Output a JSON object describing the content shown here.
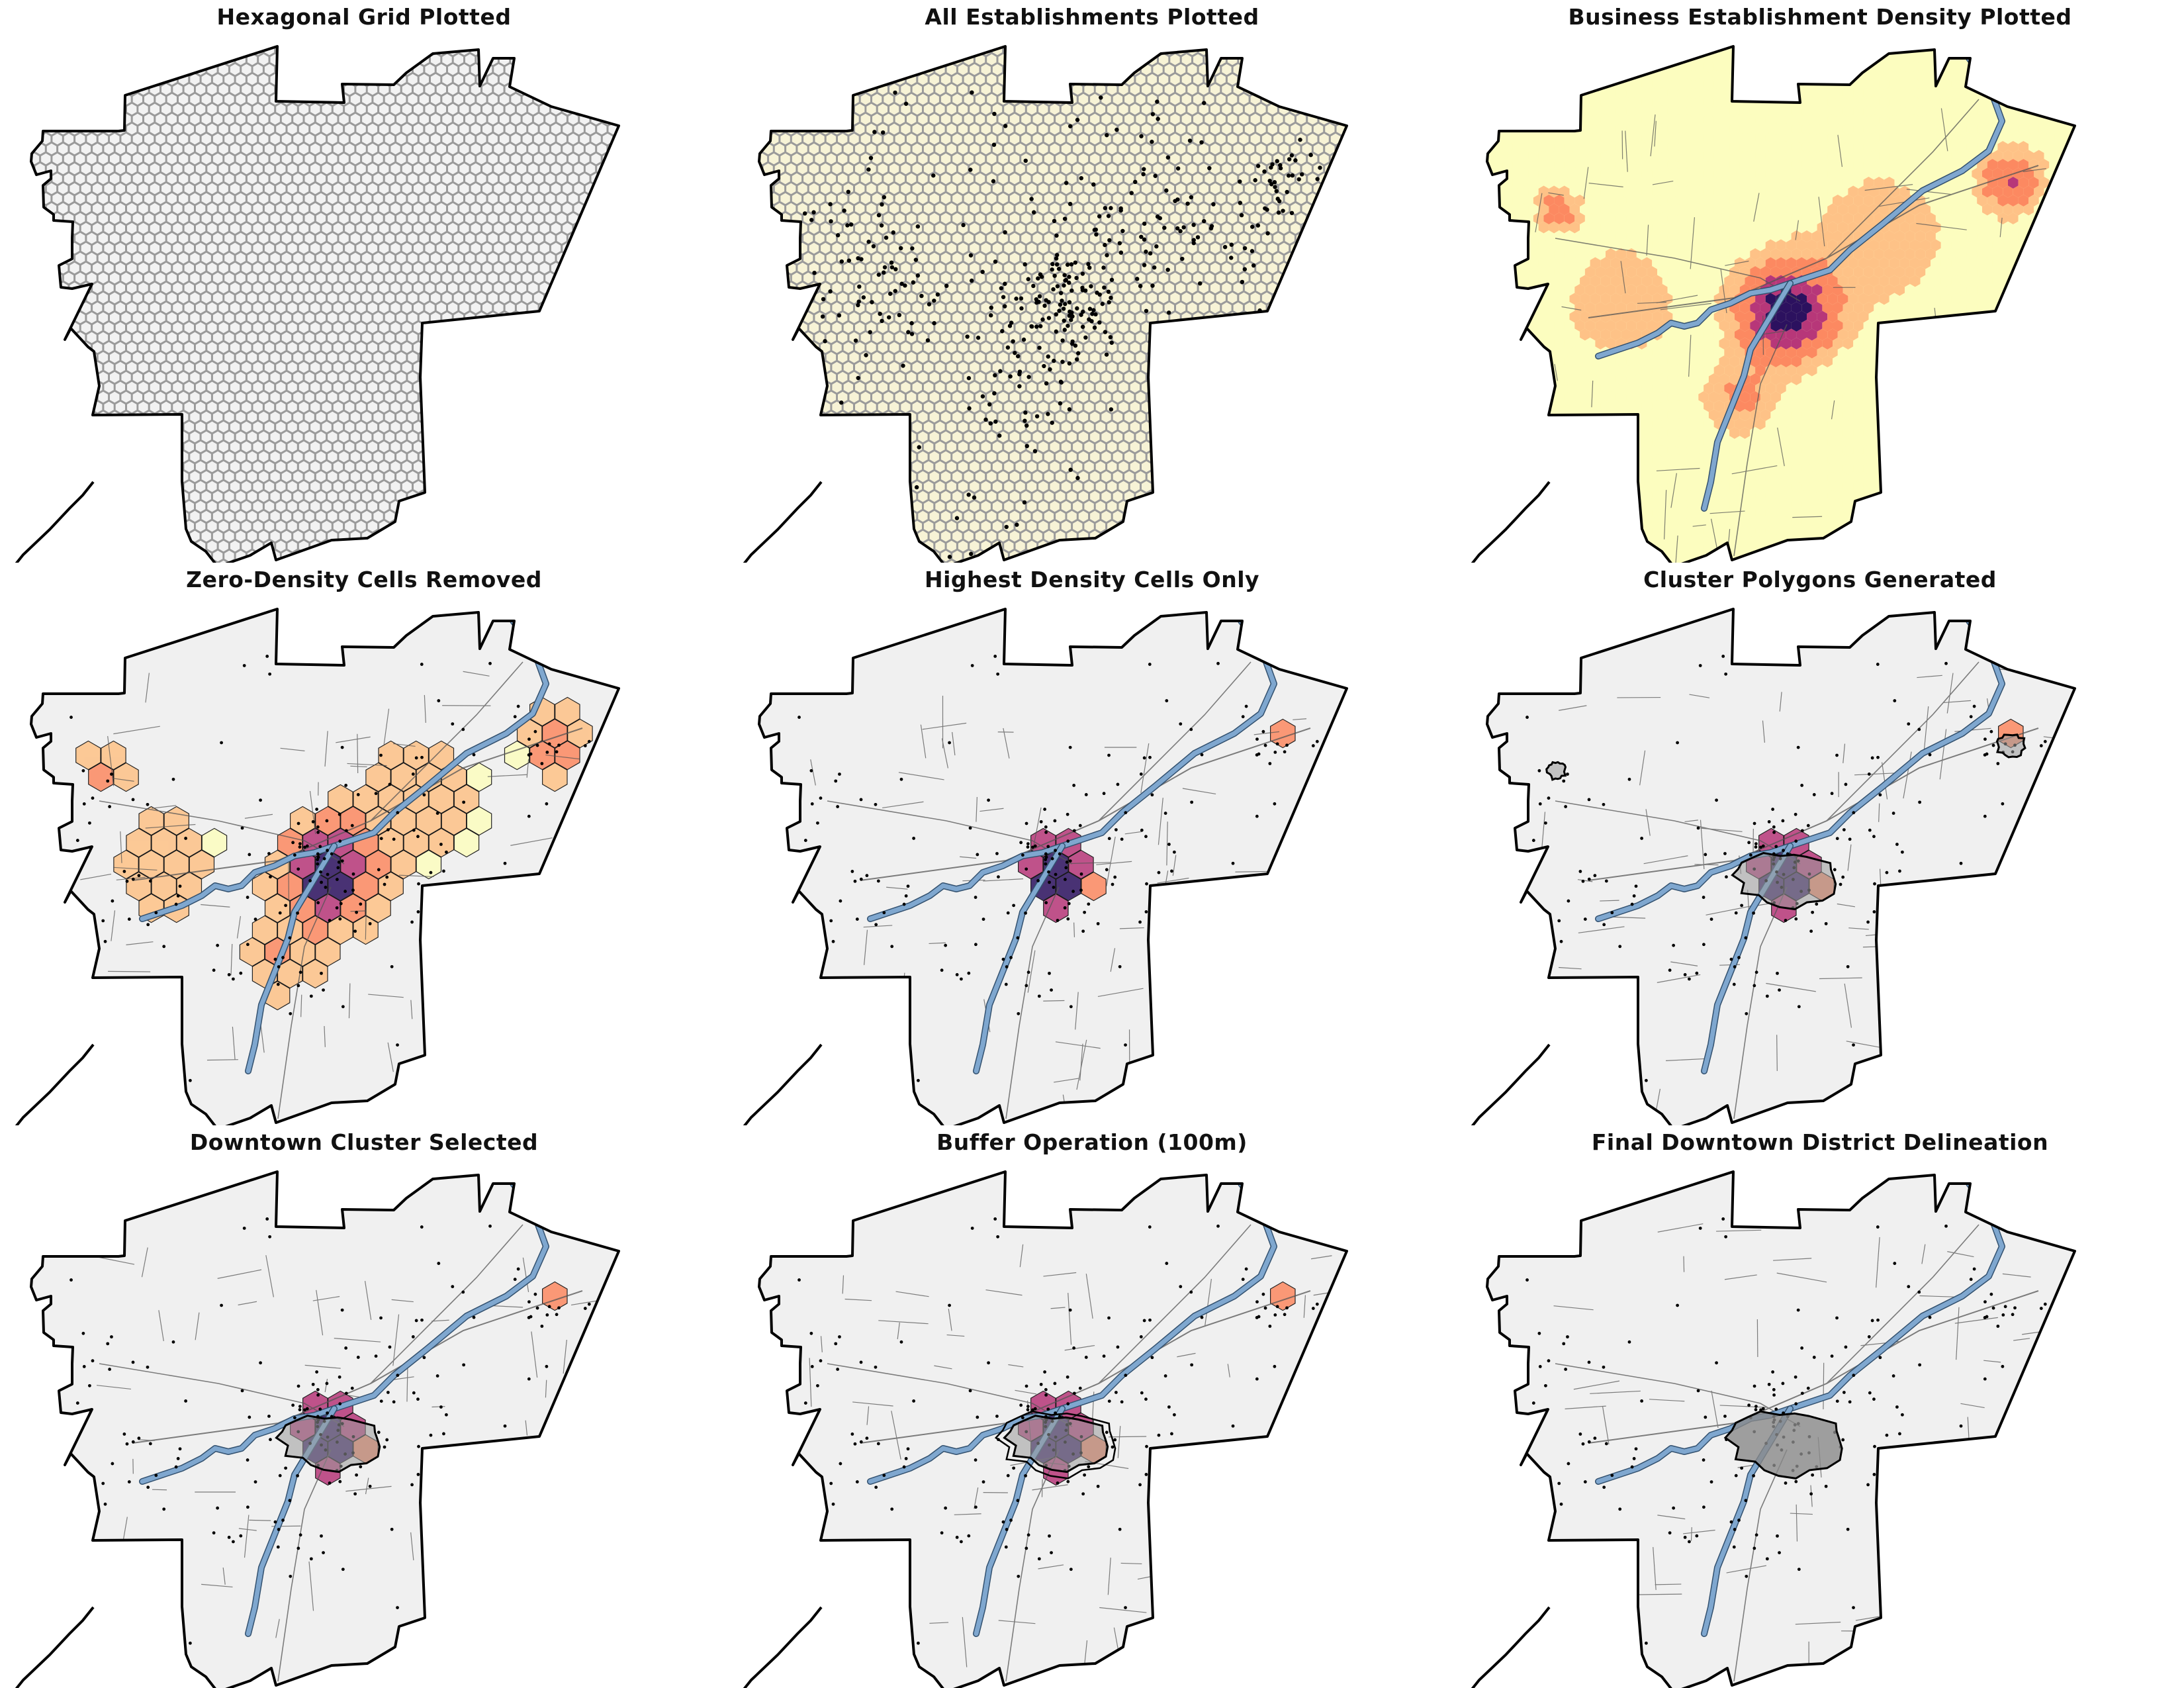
{
  "figure": {
    "panels": [
      {
        "title": "Hexagonal Grid Plotted",
        "type": "hexgrid"
      },
      {
        "title": "All Establishments Plotted",
        "type": "points"
      },
      {
        "title": "Business Establishment Density Plotted",
        "type": "density"
      },
      {
        "title": "Zero-Density Cells Removed",
        "type": "zero-removed"
      },
      {
        "title": "Highest Density Cells Only",
        "type": "highest"
      },
      {
        "title": "Cluster Polygons Generated",
        "type": "clusters"
      },
      {
        "title": "Downtown Cluster Selected",
        "type": "selected"
      },
      {
        "title": "Buffer Operation (100m)",
        "type": "buffer"
      },
      {
        "title": "Final Downtown District Delineation",
        "type": "final"
      }
    ]
  },
  "colors": {
    "boundary": "#000000",
    "land": "#f0f0f0",
    "hex_fill": "#f2f2f2",
    "hex_stroke": "#9a9a9a",
    "hex_fill_points": "#f7f3d6",
    "density_low": "#fcfdbf",
    "density_mid": "#fc8961",
    "density_high": "#b73779",
    "density_peak": "#2c115f",
    "river": "#7fa7cf",
    "road": "#555555",
    "cluster_fill": "#9a9a9a",
    "final_district": "#8a8a8a"
  }
}
